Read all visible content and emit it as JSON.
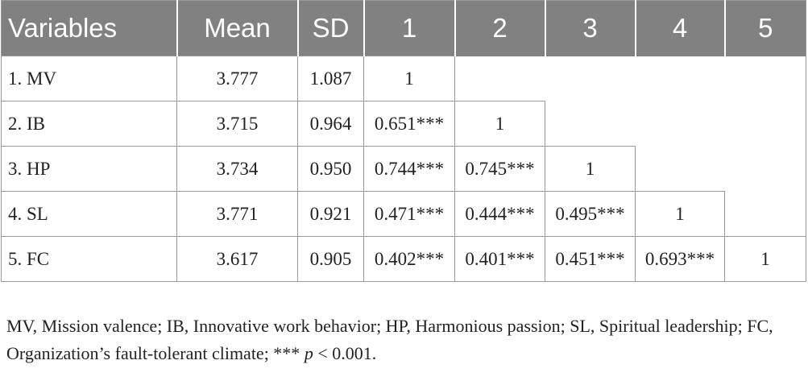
{
  "table": {
    "header": [
      "Variables",
      "Mean",
      "SD",
      "1",
      "2",
      "3",
      "4",
      "5"
    ],
    "rows": [
      [
        "1. MV",
        "3.777",
        "1.087",
        "1"
      ],
      [
        "2. IB",
        "3.715",
        "0.964",
        "0.651***",
        "1"
      ],
      [
        "3. HP",
        "3.734",
        "0.950",
        "0.744***",
        "0.745***",
        "1"
      ],
      [
        "4. SL",
        "3.771",
        "0.921",
        "0.471***",
        "0.444***",
        "0.495***",
        "1"
      ],
      [
        "5. FC",
        "3.617",
        "0.905",
        "0.402***",
        "0.401***",
        "0.451***",
        "0.693***",
        "1"
      ]
    ]
  },
  "note": [
    "MV, Mission valence; IB, Innovative work behavior; HP, Harmonious passion; SL, Spiritual leadership; FC, Organization’s fault-tolerant climate; *** ",
    "p",
    " < 0.001."
  ]
}
